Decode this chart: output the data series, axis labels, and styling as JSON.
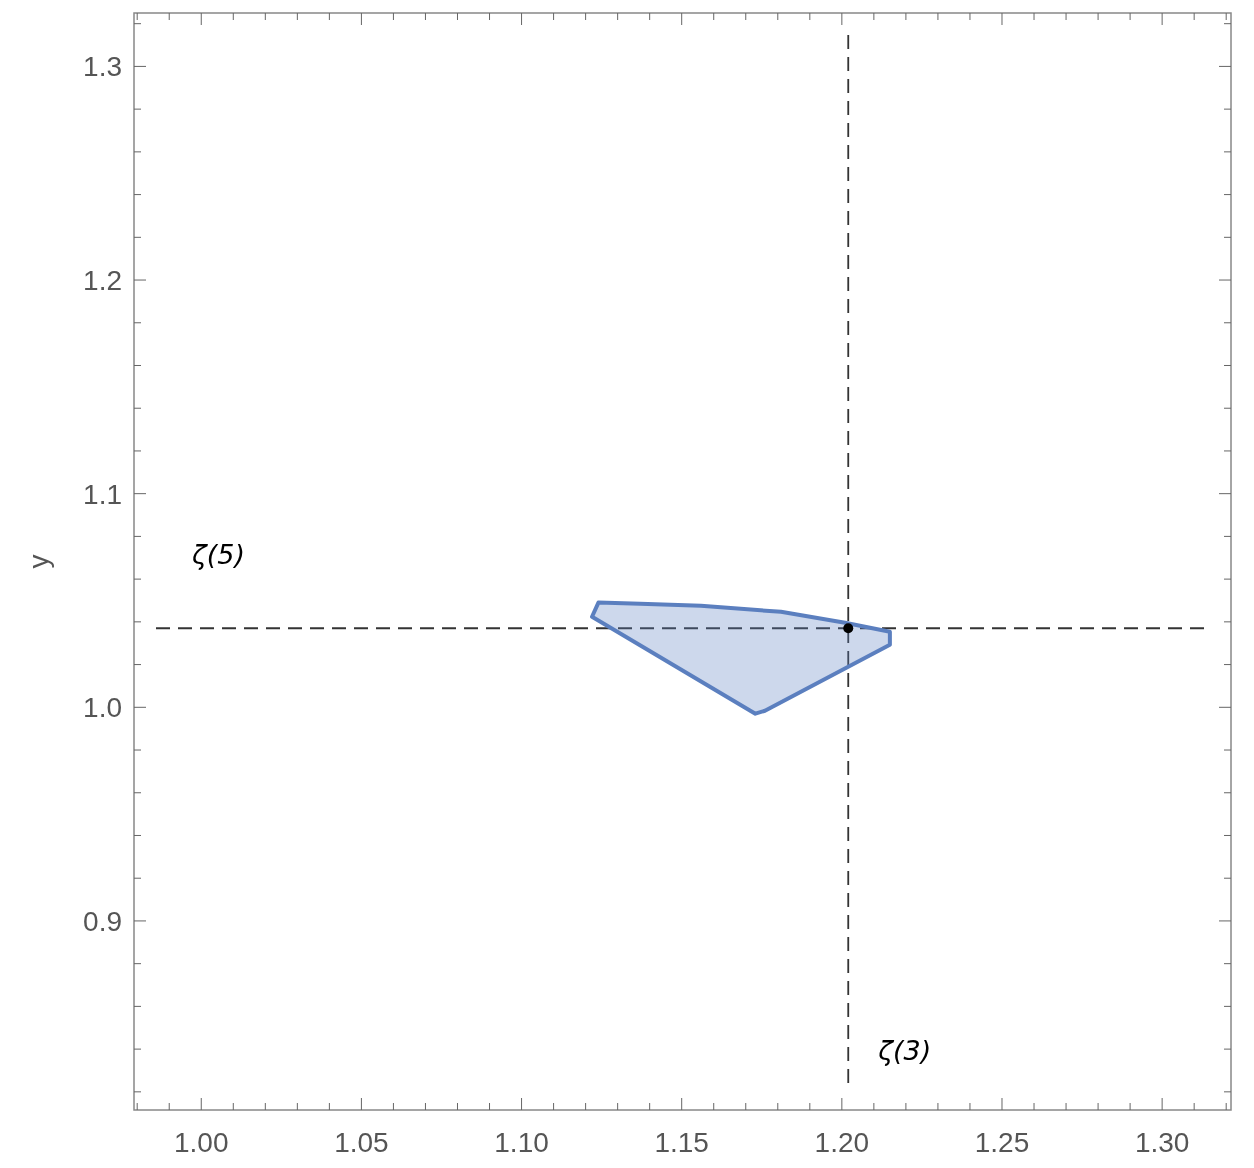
{
  "chart_data": {
    "type": "area",
    "ylabel": "y",
    "xlim": [
      0.979,
      1.3215
    ],
    "ylim": [
      0.8115,
      1.325
    ],
    "xticks": [
      {
        "value": 0.98,
        "label": null
      },
      {
        "value": 0.99,
        "label": null
      },
      {
        "value": 1.0,
        "label": "1.00"
      },
      {
        "value": 1.01,
        "label": null
      },
      {
        "value": 1.02,
        "label": null
      },
      {
        "value": 1.03,
        "label": null
      },
      {
        "value": 1.04,
        "label": null
      },
      {
        "value": 1.05,
        "label": "1.05"
      },
      {
        "value": 1.06,
        "label": null
      },
      {
        "value": 1.07,
        "label": null
      },
      {
        "value": 1.08,
        "label": null
      },
      {
        "value": 1.09,
        "label": null
      },
      {
        "value": 1.1,
        "label": "1.10"
      },
      {
        "value": 1.11,
        "label": null
      },
      {
        "value": 1.12,
        "label": null
      },
      {
        "value": 1.13,
        "label": null
      },
      {
        "value": 1.14,
        "label": null
      },
      {
        "value": 1.15,
        "label": "1.15"
      },
      {
        "value": 1.16,
        "label": null
      },
      {
        "value": 1.17,
        "label": null
      },
      {
        "value": 1.18,
        "label": null
      },
      {
        "value": 1.19,
        "label": null
      },
      {
        "value": 1.2,
        "label": "1.20"
      },
      {
        "value": 1.21,
        "label": null
      },
      {
        "value": 1.22,
        "label": null
      },
      {
        "value": 1.23,
        "label": null
      },
      {
        "value": 1.24,
        "label": null
      },
      {
        "value": 1.25,
        "label": "1.25"
      },
      {
        "value": 1.26,
        "label": null
      },
      {
        "value": 1.27,
        "label": null
      },
      {
        "value": 1.28,
        "label": null
      },
      {
        "value": 1.29,
        "label": null
      },
      {
        "value": 1.3,
        "label": "1.30"
      },
      {
        "value": 1.31,
        "label": null
      },
      {
        "value": 1.32,
        "label": null
      }
    ],
    "yticks": [
      {
        "value": 0.82,
        "label": null
      },
      {
        "value": 0.84,
        "label": null
      },
      {
        "value": 0.86,
        "label": null
      },
      {
        "value": 0.88,
        "label": null
      },
      {
        "value": 0.9,
        "label": "0.9"
      },
      {
        "value": 0.92,
        "label": null
      },
      {
        "value": 0.94,
        "label": null
      },
      {
        "value": 0.96,
        "label": null
      },
      {
        "value": 0.98,
        "label": null
      },
      {
        "value": 1.0,
        "label": "1.0"
      },
      {
        "value": 1.02,
        "label": null
      },
      {
        "value": 1.04,
        "label": null
      },
      {
        "value": 1.06,
        "label": null
      },
      {
        "value": 1.08,
        "label": null
      },
      {
        "value": 1.1,
        "label": "1.1"
      },
      {
        "value": 1.12,
        "label": null
      },
      {
        "value": 1.14,
        "label": null
      },
      {
        "value": 1.16,
        "label": null
      },
      {
        "value": 1.18,
        "label": null
      },
      {
        "value": 1.2,
        "label": "1.2"
      },
      {
        "value": 1.22,
        "label": null
      },
      {
        "value": 1.24,
        "label": null
      },
      {
        "value": 1.26,
        "label": null
      },
      {
        "value": 1.28,
        "label": null
      },
      {
        "value": 1.3,
        "label": "1.3"
      },
      {
        "value": 1.32,
        "label": null
      }
    ],
    "grid": false,
    "series": [
      {
        "color": "#5b7fbf",
        "x": [
          1.124,
          1.137,
          1.156,
          1.181,
          1.201,
          1.215,
          1.215,
          1.176,
          1.173,
          1.122,
          1.124
        ],
        "values": [
          1.049,
          1.0485,
          1.0475,
          1.0447,
          1.0396,
          1.0354,
          1.0293,
          0.9984,
          0.997,
          1.0424,
          1.049
        ]
      },
      {
        "type": "scatter",
        "color": "#000000",
        "marker": "circle",
        "x": [
          1.202
        ],
        "values": [
          1.037
        ]
      }
    ],
    "ref_lines": [
      {
        "axis": "x",
        "value": 1.202,
        "label": "ζ(3)",
        "color": "#333333",
        "line_style": "dashed"
      },
      {
        "axis": "y",
        "value": 1.037,
        "label": "ζ(5)",
        "color": "#333333",
        "line_style": "dashed"
      }
    ]
  }
}
